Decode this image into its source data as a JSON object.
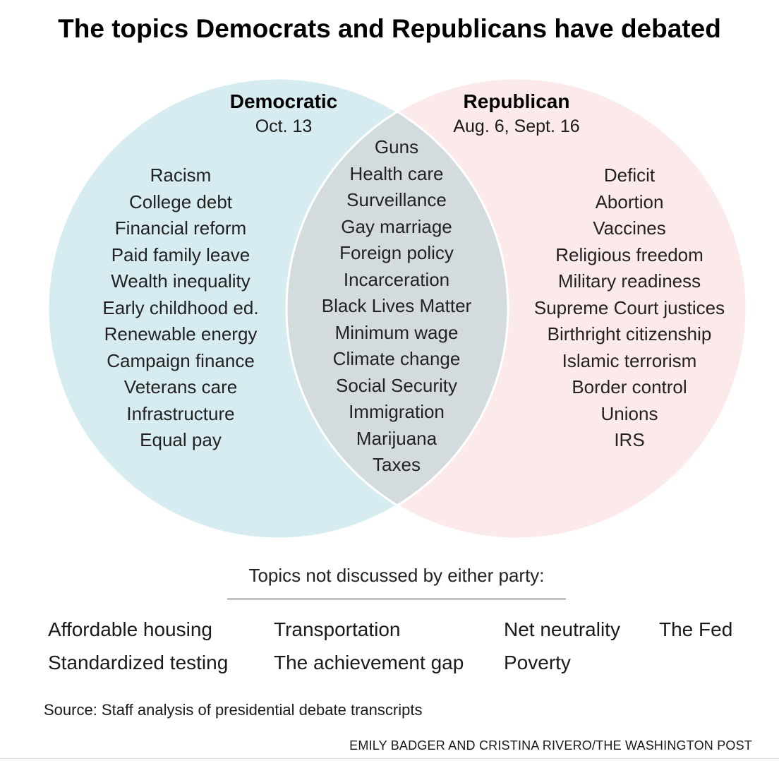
{
  "title": "The topics Democrats and Republicans have debated",
  "colors": {
    "democratic_fill": "#d6ecf0",
    "republican_fill": "#fce9ea",
    "overlap_fill": "#d4dbde",
    "outline": "#ffffff"
  },
  "venn": {
    "democratic": {
      "name": "Democratic",
      "date": "Oct. 13",
      "topics": [
        "Racism",
        "College debt",
        "Financial reform",
        "Paid family leave",
        "Wealth inequality",
        "Early childhood ed.",
        "Renewable energy",
        "Campaign finance",
        "Veterans care",
        "Infrastructure",
        "Equal pay"
      ]
    },
    "republican": {
      "name": "Republican",
      "date": "Aug. 6, Sept. 16",
      "topics": [
        "Deficit",
        "Abortion",
        "Vaccines",
        "Religious freedom",
        "Military readiness",
        "Supreme Court justices",
        "Birthright citizenship",
        "Islamic terrorism",
        "Border control",
        "Unions",
        "IRS"
      ]
    },
    "both": {
      "topics": [
        "Guns",
        "Health care",
        "Surveillance",
        "Gay marriage",
        "Foreign policy",
        "Incarceration",
        "Black Lives Matter",
        "Minimum wage",
        "Climate change",
        "Social Security",
        "Immigration",
        "Marijuana",
        "Taxes"
      ]
    }
  },
  "not_discussed": {
    "title": "Topics not discussed by either party:",
    "items": [
      "Affordable housing",
      "Transportation",
      "Net neutrality",
      "The Fed",
      "Standardized testing",
      "The achievement gap",
      "Poverty"
    ]
  },
  "source": "Source: Staff analysis of presidential debate transcripts",
  "credit": "EMILY BADGER AND CRISTINA RIVERO/THE WASHINGTON POST"
}
